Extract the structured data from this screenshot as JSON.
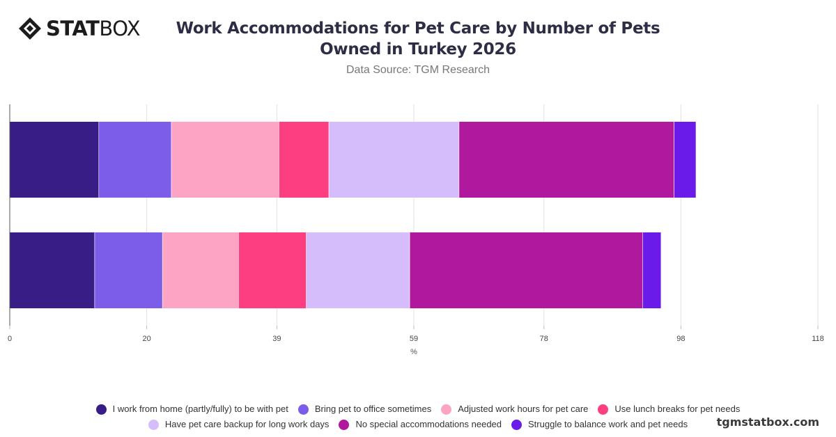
{
  "logo": {
    "bold": "STAT",
    "light": "BOX"
  },
  "header": {
    "title_line1": "Work Accommodations for Pet Care by Number of Pets",
    "title_line2": "Owned in Turkey 2026",
    "subtitle": "Data Source: TGM Research"
  },
  "watermark": "tgmstatbox.com",
  "chart_data": {
    "type": "bar",
    "orientation": "horizontal",
    "stacked": true,
    "title": "Work Accommodations for Pet Care by Number of Pets Owned in Turkey 2026",
    "xlabel": "%",
    "ylabel": "",
    "xlim": [
      0,
      118
    ],
    "xticks": [
      0,
      20,
      39,
      59,
      78,
      98,
      118
    ],
    "grid": true,
    "legend_position": "bottom",
    "categories": [
      "",
      ""
    ],
    "series": [
      {
        "name": "I work from home (partly/fully) to be with pet",
        "color": "#371d85",
        "values": [
          13,
          12.4
        ]
      },
      {
        "name": "Bring pet to office sometimes",
        "color": "#7b5de9",
        "values": [
          10.6,
          9.9
        ]
      },
      {
        "name": "Adjusted work hours for pet care",
        "color": "#fda3c4",
        "values": [
          15.7,
          11.1
        ]
      },
      {
        "name": "Use lunch breaks for pet needs",
        "color": "#fd3f82",
        "values": [
          7.3,
          9.9
        ]
      },
      {
        "name": "Have pet care backup for long work days",
        "color": "#d5bdfb",
        "values": [
          19,
          15.1
        ]
      },
      {
        "name": "No special accommodations needed",
        "color": "#b0189d",
        "values": [
          31.4,
          34
        ]
      },
      {
        "name": "Struggle to balance work and pet needs",
        "color": "#6a1bea",
        "values": [
          3.2,
          2.7
        ]
      }
    ]
  }
}
